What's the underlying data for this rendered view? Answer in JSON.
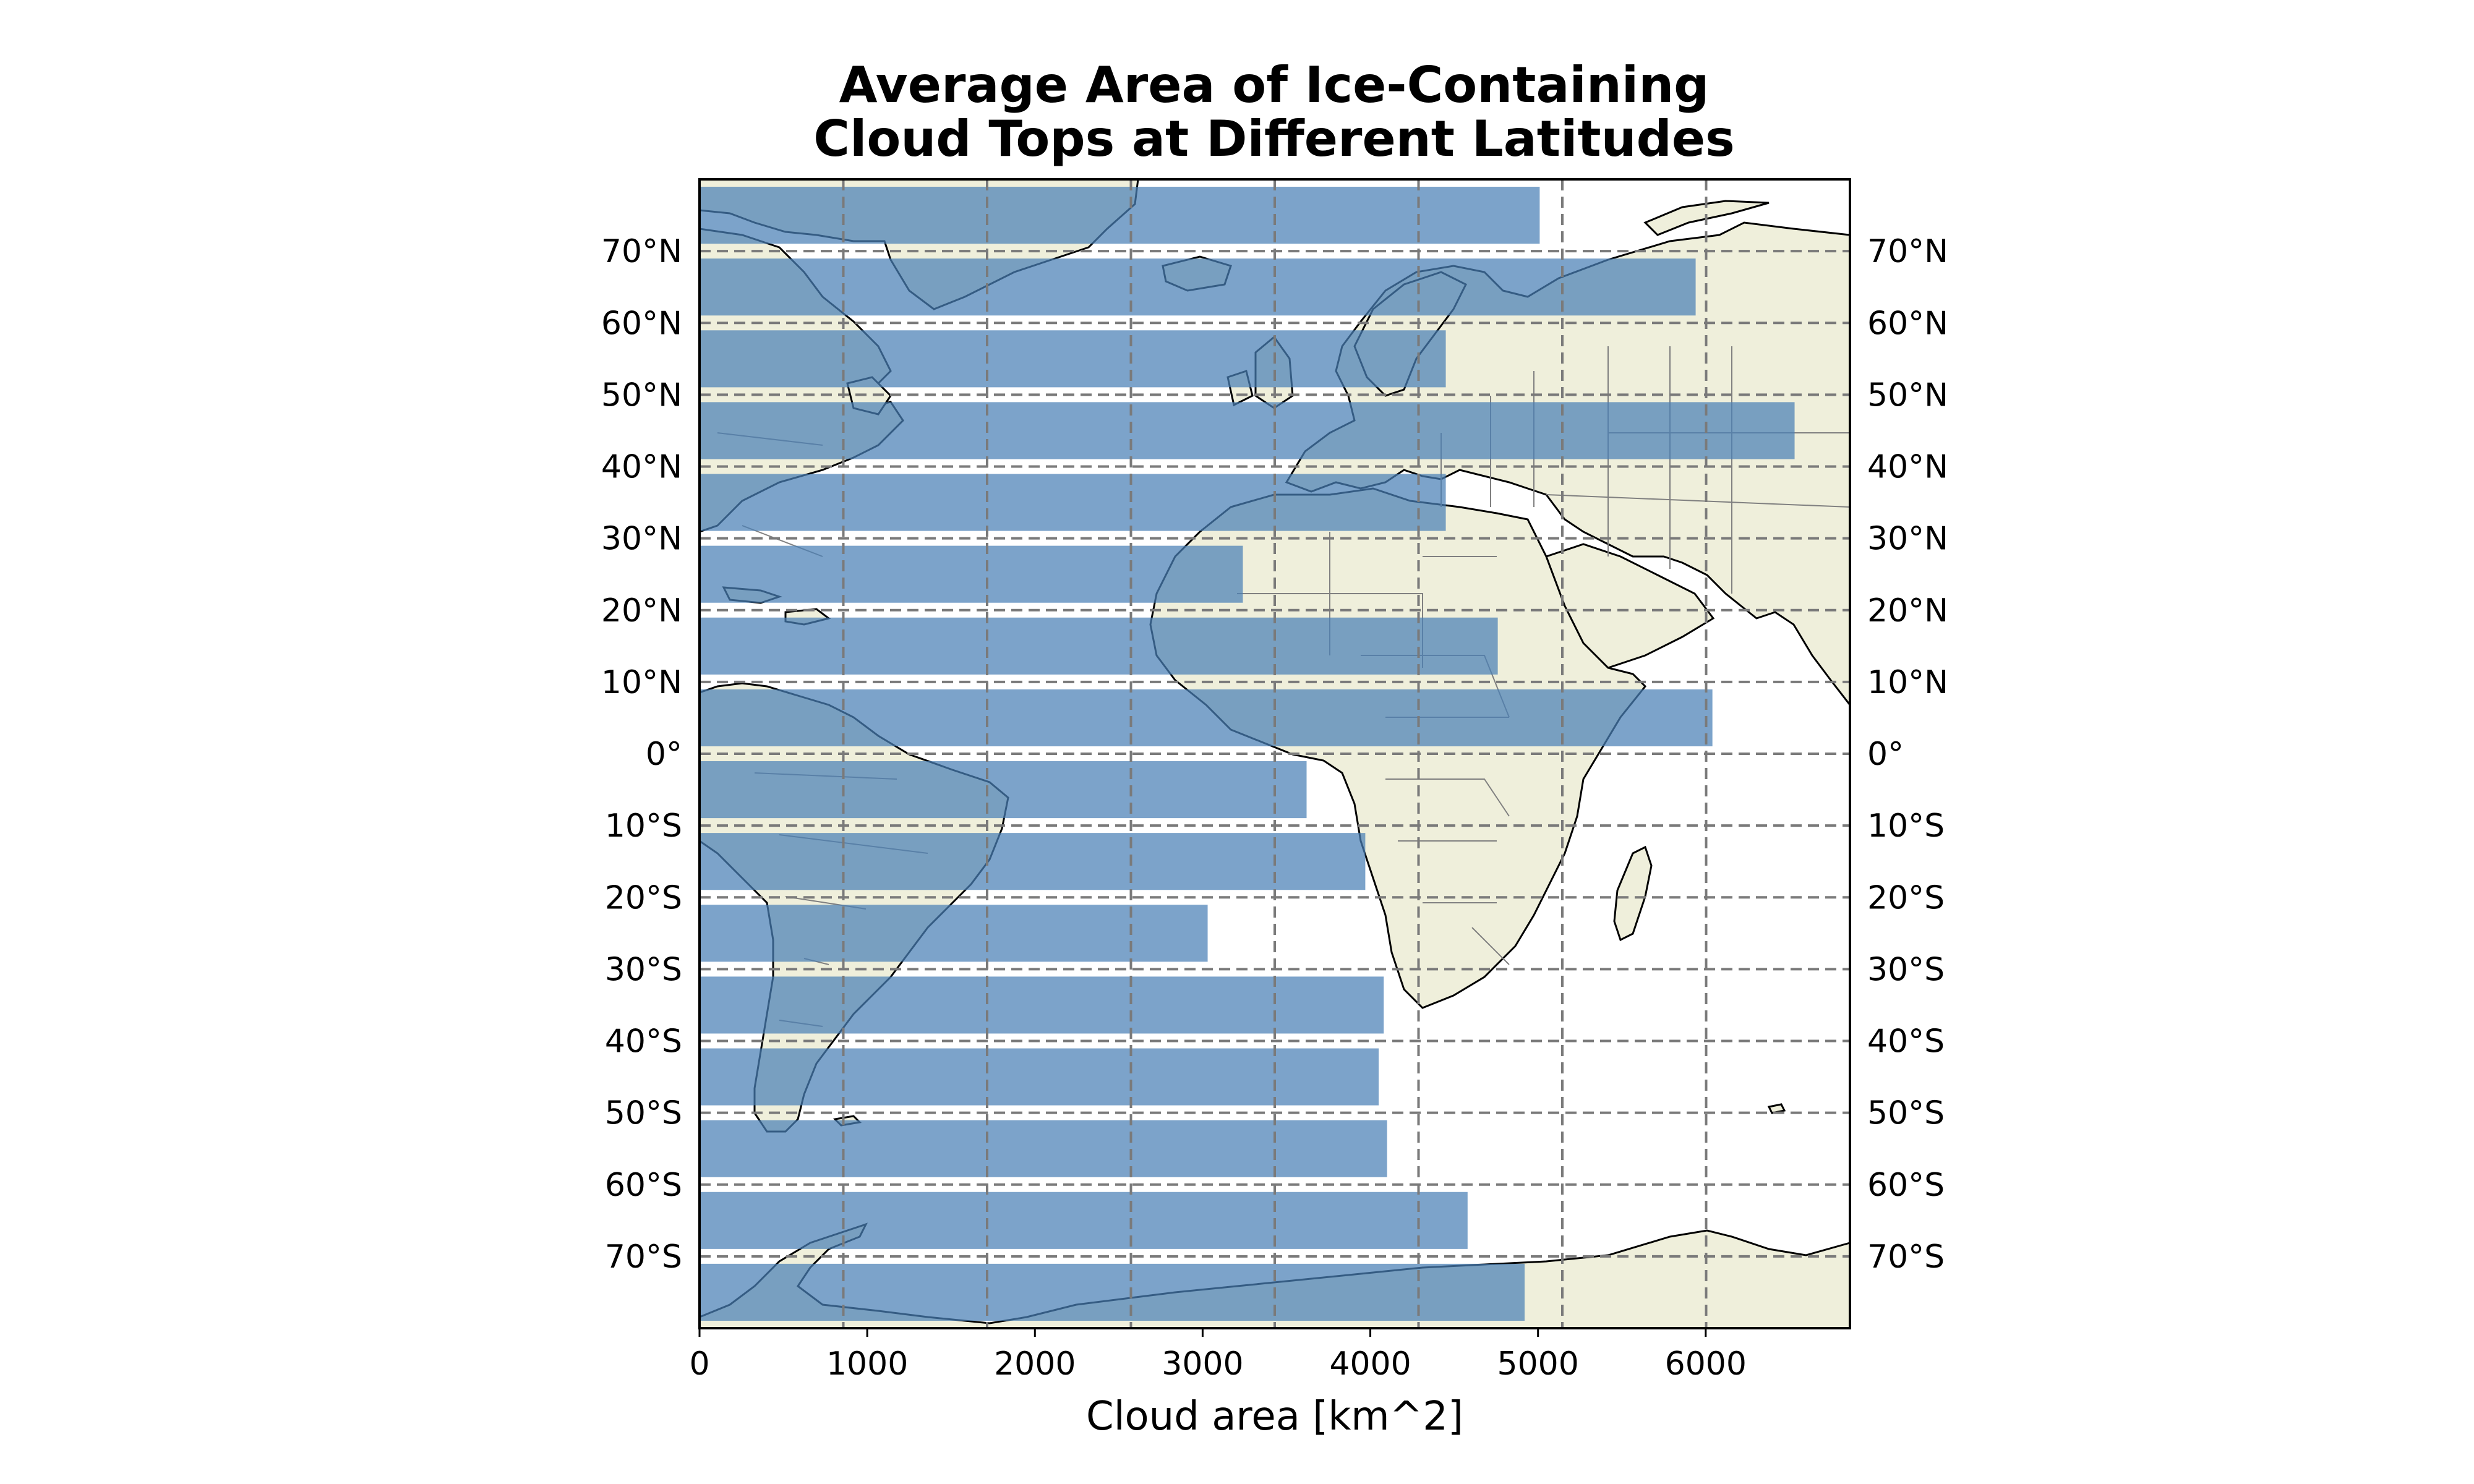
{
  "chart_data": {
    "type": "bar",
    "orientation": "horizontal",
    "title": "Average Area of Ice-Containing\nCloud Tops at Different Latitudes",
    "title_lines": [
      "Average Area of Ice-Containing",
      "Cloud Tops at Different Latitudes"
    ],
    "xlabel": "Cloud area [km^2]",
    "ylabel": "",
    "xlim": [
      0,
      6860
    ],
    "x_ticks": [
      0,
      1000,
      2000,
      3000,
      4000,
      5000,
      6000
    ],
    "x_tick_labels": [
      "0",
      "1000",
      "2000",
      "3000",
      "4000",
      "5000",
      "6000"
    ],
    "y_ticks": [
      70,
      60,
      50,
      40,
      30,
      20,
      10,
      0,
      -10,
      -20,
      -30,
      -40,
      -50,
      -60,
      -70
    ],
    "y_tick_labels": [
      "70°N",
      "60°N",
      "50°N",
      "40°N",
      "30°N",
      "20°N",
      "10°N",
      "0°",
      "10°S",
      "20°S",
      "30°S",
      "40°S",
      "50°S",
      "60°S",
      "70°S"
    ],
    "latitude_range": [
      -80,
      80
    ],
    "longitude_range": [
      -80,
      80
    ],
    "background": "map",
    "grid": true,
    "colors": {
      "bar": "#4a7fb5",
      "land": "#efefdb",
      "grid": "#7a7a7a"
    },
    "bands": [
      {
        "lat_min": 70,
        "lat_max": 80,
        "value": 5010
      },
      {
        "lat_min": 60,
        "lat_max": 70,
        "value": 5940
      },
      {
        "lat_min": 50,
        "lat_max": 60,
        "value": 4450
      },
      {
        "lat_min": 40,
        "lat_max": 50,
        "value": 6530
      },
      {
        "lat_min": 30,
        "lat_max": 40,
        "value": 4450
      },
      {
        "lat_min": 20,
        "lat_max": 30,
        "value": 3240
      },
      {
        "lat_min": 10,
        "lat_max": 20,
        "value": 4760
      },
      {
        "lat_min": 0,
        "lat_max": 10,
        "value": 6040
      },
      {
        "lat_min": -10,
        "lat_max": 0,
        "value": 3620
      },
      {
        "lat_min": -20,
        "lat_max": -10,
        "value": 3970
      },
      {
        "lat_min": -30,
        "lat_max": -20,
        "value": 3030
      },
      {
        "lat_min": -40,
        "lat_max": -30,
        "value": 4080
      },
      {
        "lat_min": -50,
        "lat_max": -40,
        "value": 4050
      },
      {
        "lat_min": -60,
        "lat_max": -50,
        "value": 4100
      },
      {
        "lat_min": -70,
        "lat_max": -60,
        "value": 4580
      },
      {
        "lat_min": -80,
        "lat_max": -70,
        "value": 4920
      }
    ]
  }
}
